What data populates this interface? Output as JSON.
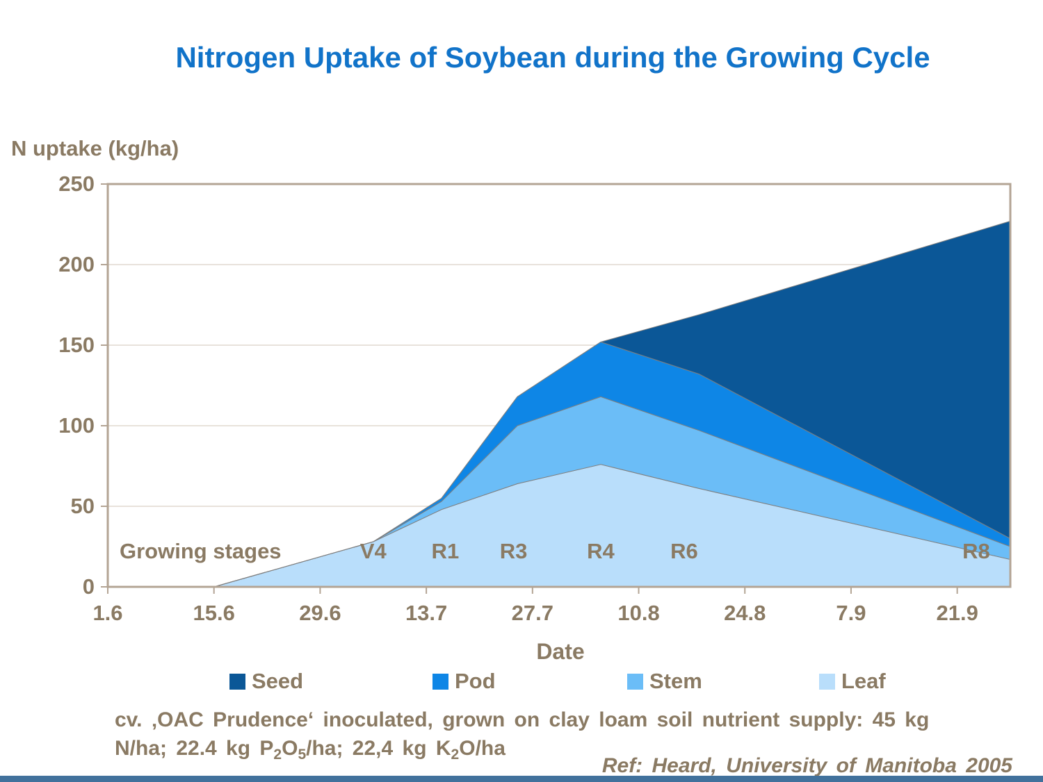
{
  "title": "Nitrogen Uptake of Soybean during the Growing Cycle",
  "colors": {
    "title_blue": "#1173c9",
    "text_brown": "#8a7a63",
    "plot_border": "#b3a494",
    "gridline": "#d9d0c5",
    "area_edge": "#7f7f7f",
    "bottom_bar": "#41719c",
    "seed": "#0b5797",
    "pod": "#0e86e6",
    "stem": "#6bbdf7",
    "leaf": "#b9defb"
  },
  "chart_data": {
    "type": "area",
    "stacked": true,
    "title": "Nitrogen Uptake of Soybean during the Growing Cycle",
    "xlabel": "Date",
    "ylabel": "N uptake (kg/ha)",
    "ylim": [
      0,
      250
    ],
    "y_tick_step": 50,
    "y_tick_labels": [
      "0",
      "50",
      "100",
      "150",
      "200",
      "250"
    ],
    "grid": "horizontal",
    "legend_position": "bottom",
    "x_span_days": 119,
    "x_ticks": [
      {
        "day": 0,
        "label": "1.6"
      },
      {
        "day": 14,
        "label": "15.6"
      },
      {
        "day": 28,
        "label": "29.6"
      },
      {
        "day": 42,
        "label": "13.7"
      },
      {
        "day": 56,
        "label": "27.7"
      },
      {
        "day": 70,
        "label": "10.8"
      },
      {
        "day": 84,
        "label": "24.8"
      },
      {
        "day": 98,
        "label": "7.9"
      },
      {
        "day": 112,
        "label": "21.9"
      }
    ],
    "stack_order": [
      "Leaf",
      "Stem",
      "Pod",
      "Seed"
    ],
    "series": [
      {
        "name": "Leaf",
        "values": [
          0,
          0,
          28,
          48,
          64,
          76,
          61,
          17
        ]
      },
      {
        "name": "Stem",
        "values": [
          0,
          0,
          0,
          5,
          36,
          42,
          36,
          8
        ]
      },
      {
        "name": "Pod",
        "values": [
          0,
          0,
          0,
          2,
          18,
          34,
          35,
          5
        ]
      },
      {
        "name": "Seed",
        "values": [
          0,
          0,
          0,
          0,
          0,
          0,
          37,
          197
        ]
      }
    ],
    "x_days": [
      0,
      14,
      35,
      44,
      54,
      65,
      78,
      119
    ],
    "stacked_totals": [
      0,
      0,
      28,
      55,
      118,
      152,
      169,
      227
    ],
    "stage_caption": "Growing stages",
    "stage_annotations": [
      {
        "label": "V4",
        "day": 35
      },
      {
        "label": "R1",
        "day": 44.5
      },
      {
        "label": "R3",
        "day": 53.5
      },
      {
        "label": "R4",
        "day": 65
      },
      {
        "label": "R6",
        "day": 76
      },
      {
        "label": "R8",
        "day": 114.5
      }
    ]
  },
  "legend": [
    {
      "label": "Seed",
      "color": "#0b5797"
    },
    {
      "label": "Pod",
      "color": "#0e86e6"
    },
    {
      "label": "Stem",
      "color": "#6bbdf7"
    },
    {
      "label": "Leaf",
      "color": "#b9defb"
    }
  ],
  "caption": {
    "line1": "cv. ‚OAC Prudence‘ inoculated, grown on clay loam soil nutrient supply: 45 kg",
    "line2_parts": [
      {
        "t": "N/ha; 22.4 kg P"
      },
      {
        "t": "2",
        "sub": true
      },
      {
        "t": "O"
      },
      {
        "t": "5",
        "sub": true
      },
      {
        "t": "/ha; 22,4 kg K"
      },
      {
        "t": "2",
        "sub": true
      },
      {
        "t": "O/ha"
      }
    ]
  },
  "ref": "Ref: Heard, University of Manitoba 2005"
}
